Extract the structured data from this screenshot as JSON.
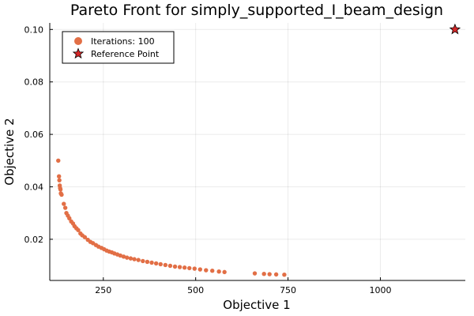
{
  "chart_data": {
    "type": "scatter",
    "title": "Pareto Front for simply_supported_I_beam_design",
    "xlabel": "Objective 1",
    "ylabel": "Objective 2",
    "xlim": [
      105,
      1230
    ],
    "ylim": [
      0.0043,
      0.1025
    ],
    "xticks": [
      250,
      500,
      750,
      1000
    ],
    "xtick_labels": [
      "250",
      "500",
      "750",
      "1000"
    ],
    "yticks": [
      0.02,
      0.04,
      0.06,
      0.08,
      0.1
    ],
    "ytick_labels": [
      "0.02",
      "0.04",
      "0.06",
      "0.08",
      "0.10"
    ],
    "grid": true,
    "legend": {
      "placement": "top-left"
    },
    "series": [
      {
        "name": "Iterations: 100",
        "color": "#e26f46",
        "marker": "circle",
        "points": [
          [
            128,
            0.05
          ],
          [
            130,
            0.044
          ],
          [
            131,
            0.0425
          ],
          [
            132,
            0.0405
          ],
          [
            133,
            0.0395
          ],
          [
            134,
            0.039
          ],
          [
            135,
            0.0375
          ],
          [
            137,
            0.037
          ],
          [
            143,
            0.0335
          ],
          [
            147,
            0.032
          ],
          [
            150,
            0.03
          ],
          [
            154,
            0.029
          ],
          [
            158,
            0.028
          ],
          [
            163,
            0.0268
          ],
          [
            168,
            0.026
          ],
          [
            172,
            0.025
          ],
          [
            177,
            0.0242
          ],
          [
            182,
            0.0235
          ],
          [
            188,
            0.0222
          ],
          [
            193,
            0.0215
          ],
          [
            200,
            0.0208
          ],
          [
            208,
            0.0198
          ],
          [
            215,
            0.019
          ],
          [
            222,
            0.0185
          ],
          [
            230,
            0.0178
          ],
          [
            237,
            0.0172
          ],
          [
            245,
            0.0167
          ],
          [
            252,
            0.0162
          ],
          [
            259,
            0.0157
          ],
          [
            266,
            0.0153
          ],
          [
            273,
            0.015
          ],
          [
            280,
            0.0146
          ],
          [
            288,
            0.0142
          ],
          [
            296,
            0.0138
          ],
          [
            305,
            0.0134
          ],
          [
            314,
            0.013
          ],
          [
            324,
            0.0127
          ],
          [
            334,
            0.0124
          ],
          [
            345,
            0.0121
          ],
          [
            357,
            0.0117
          ],
          [
            369,
            0.0114
          ],
          [
            381,
            0.0111
          ],
          [
            393,
            0.0108
          ],
          [
            405,
            0.0105
          ],
          [
            418,
            0.0102
          ],
          [
            431,
            0.0099
          ],
          [
            444,
            0.0096
          ],
          [
            457,
            0.0094
          ],
          [
            470,
            0.0092
          ],
          [
            483,
            0.009
          ],
          [
            497,
            0.0088
          ],
          [
            512,
            0.0085
          ],
          [
            528,
            0.0082
          ],
          [
            545,
            0.008
          ],
          [
            563,
            0.0077
          ],
          [
            578,
            0.0075
          ],
          [
            660,
            0.007
          ],
          [
            685,
            0.0068
          ],
          [
            700,
            0.0067
          ],
          [
            718,
            0.0066
          ],
          [
            740,
            0.0065
          ]
        ]
      },
      {
        "name": "Reference Point",
        "color": "#d62728",
        "marker": "star",
        "points": [
          [
            1202,
            0.1
          ]
        ]
      }
    ]
  }
}
